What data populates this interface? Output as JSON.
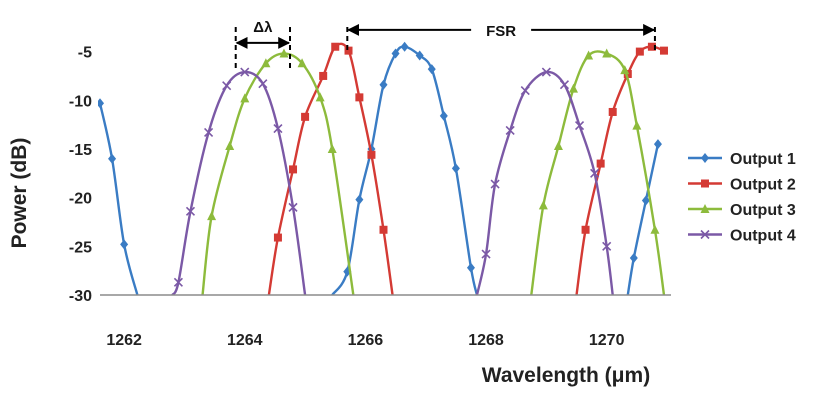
{
  "chart_data": {
    "type": "line",
    "title": "",
    "xlabel": "Wavelength (μm)",
    "ylabel": "Power (dB)",
    "xlim": [
      1261.6,
      1271.0
    ],
    "ylim": [
      -30,
      -3.5
    ],
    "xticks": [
      1262,
      1264,
      1266,
      1268,
      1270
    ],
    "yticks": [
      -5,
      -10,
      -15,
      -20,
      -25,
      -30
    ],
    "grid": false,
    "legend_position": "right",
    "series": [
      {
        "name": "Output 1",
        "color": "#3a7cc4",
        "marker": "diamond",
        "points": [
          [
            1261.6,
            -10.3
          ],
          [
            1261.8,
            -16.0
          ],
          [
            1262.0,
            -24.8
          ],
          [
            1262.22,
            -30.0
          ],
          [
            1265.45,
            -30.0
          ],
          [
            1265.7,
            -27.6
          ],
          [
            1265.9,
            -20.2
          ],
          [
            1266.1,
            -15.0
          ],
          [
            1266.3,
            -8.4
          ],
          [
            1266.5,
            -5.2
          ],
          [
            1266.65,
            -4.5
          ],
          [
            1266.9,
            -5.4
          ],
          [
            1267.1,
            -6.8
          ],
          [
            1267.3,
            -11.6
          ],
          [
            1267.5,
            -17.0
          ],
          [
            1267.75,
            -27.2
          ],
          [
            1267.85,
            -30.0
          ],
          [
            1270.35,
            -30.0
          ],
          [
            1270.45,
            -26.2
          ],
          [
            1270.65,
            -20.3
          ],
          [
            1270.85,
            -14.5
          ]
        ],
        "markers": [
          [
            1261.6,
            -10.3
          ],
          [
            1261.8,
            -16.0
          ],
          [
            1262.0,
            -24.8
          ],
          [
            1265.7,
            -27.6
          ],
          [
            1265.9,
            -20.2
          ],
          [
            1266.1,
            -15.0
          ],
          [
            1266.3,
            -8.4
          ],
          [
            1266.5,
            -5.2
          ],
          [
            1266.65,
            -4.5
          ],
          [
            1266.9,
            -5.4
          ],
          [
            1267.1,
            -6.8
          ],
          [
            1267.3,
            -11.6
          ],
          [
            1267.5,
            -17.0
          ],
          [
            1267.75,
            -27.2
          ],
          [
            1270.45,
            -26.2
          ],
          [
            1270.65,
            -20.3
          ],
          [
            1270.85,
            -14.5
          ]
        ]
      },
      {
        "name": "Output 2",
        "color": "#d43a34",
        "marker": "square",
        "points": [
          [
            1264.4,
            -30.0
          ],
          [
            1264.55,
            -24.1
          ],
          [
            1264.8,
            -17.1
          ],
          [
            1265.0,
            -11.7
          ],
          [
            1265.3,
            -7.5
          ],
          [
            1265.5,
            -4.5
          ],
          [
            1265.72,
            -4.9
          ],
          [
            1265.9,
            -9.7
          ],
          [
            1266.1,
            -15.6
          ],
          [
            1266.3,
            -23.3
          ],
          [
            1266.45,
            -30.0
          ],
          [
            1269.5,
            -30.0
          ],
          [
            1269.65,
            -23.3
          ],
          [
            1269.9,
            -16.5
          ],
          [
            1270.1,
            -11.2
          ],
          [
            1270.35,
            -7.3
          ],
          [
            1270.55,
            -5.0
          ],
          [
            1270.75,
            -4.5
          ],
          [
            1270.95,
            -4.9
          ]
        ],
        "markers": [
          [
            1264.55,
            -24.1
          ],
          [
            1264.8,
            -17.1
          ],
          [
            1265.0,
            -11.7
          ],
          [
            1265.3,
            -7.5
          ],
          [
            1265.5,
            -4.5
          ],
          [
            1265.72,
            -4.9
          ],
          [
            1265.9,
            -9.7
          ],
          [
            1266.1,
            -15.6
          ],
          [
            1266.3,
            -23.3
          ],
          [
            1269.65,
            -23.3
          ],
          [
            1269.9,
            -16.5
          ],
          [
            1270.1,
            -11.2
          ],
          [
            1270.35,
            -7.3
          ],
          [
            1270.55,
            -5.0
          ],
          [
            1270.75,
            -4.5
          ],
          [
            1270.95,
            -4.9
          ]
        ]
      },
      {
        "name": "Output 3",
        "color": "#8dbb3c",
        "marker": "triangle",
        "points": [
          [
            1263.3,
            -30.0
          ],
          [
            1263.45,
            -21.9
          ],
          [
            1263.75,
            -14.7
          ],
          [
            1264.0,
            -9.8
          ],
          [
            1264.35,
            -6.2
          ],
          [
            1264.65,
            -5.2
          ],
          [
            1264.95,
            -6.2
          ],
          [
            1265.25,
            -9.7
          ],
          [
            1265.45,
            -15.0
          ],
          [
            1265.8,
            -30.0
          ],
          [
            1268.75,
            -30.0
          ],
          [
            1268.95,
            -20.8
          ],
          [
            1269.2,
            -14.7
          ],
          [
            1269.45,
            -8.8
          ],
          [
            1269.7,
            -5.4
          ],
          [
            1270.0,
            -5.2
          ],
          [
            1270.3,
            -6.9
          ],
          [
            1270.5,
            -12.6
          ],
          [
            1270.8,
            -23.3
          ],
          [
            1270.95,
            -30.0
          ]
        ],
        "markers": [
          [
            1263.45,
            -21.9
          ],
          [
            1263.75,
            -14.7
          ],
          [
            1264.0,
            -9.8
          ],
          [
            1264.35,
            -6.2
          ],
          [
            1264.65,
            -5.2
          ],
          [
            1264.95,
            -6.2
          ],
          [
            1265.25,
            -9.7
          ],
          [
            1265.45,
            -15.0
          ],
          [
            1268.95,
            -20.8
          ],
          [
            1269.2,
            -14.7
          ],
          [
            1269.45,
            -8.8
          ],
          [
            1269.7,
            -5.4
          ],
          [
            1270.0,
            -5.2
          ],
          [
            1270.3,
            -6.9
          ],
          [
            1270.5,
            -12.6
          ],
          [
            1270.8,
            -23.3
          ]
        ]
      },
      {
        "name": "Output 4",
        "color": "#7b59a6",
        "marker": "x",
        "points": [
          [
            1262.8,
            -30.0
          ],
          [
            1262.9,
            -28.7
          ],
          [
            1263.1,
            -21.4
          ],
          [
            1263.4,
            -13.3
          ],
          [
            1263.7,
            -8.5
          ],
          [
            1264.0,
            -7.1
          ],
          [
            1264.3,
            -8.3
          ],
          [
            1264.55,
            -12.9
          ],
          [
            1264.8,
            -21.0
          ],
          [
            1265.0,
            -30.0
          ],
          [
            1267.85,
            -30.0
          ],
          [
            1268.0,
            -25.8
          ],
          [
            1268.15,
            -18.6
          ],
          [
            1268.4,
            -13.1
          ],
          [
            1268.65,
            -9.0
          ],
          [
            1269.0,
            -7.1
          ],
          [
            1269.3,
            -8.4
          ],
          [
            1269.55,
            -12.6
          ],
          [
            1269.8,
            -17.5
          ],
          [
            1270.0,
            -25.0
          ],
          [
            1270.1,
            -30.0
          ]
        ],
        "markers": [
          [
            1262.9,
            -28.7
          ],
          [
            1263.1,
            -21.4
          ],
          [
            1263.4,
            -13.3
          ],
          [
            1263.7,
            -8.5
          ],
          [
            1264.0,
            -7.1
          ],
          [
            1264.3,
            -8.3
          ],
          [
            1264.55,
            -12.9
          ],
          [
            1264.8,
            -21.0
          ],
          [
            1268.0,
            -25.8
          ],
          [
            1268.15,
            -18.6
          ],
          [
            1268.4,
            -13.1
          ],
          [
            1268.65,
            -9.0
          ],
          [
            1269.0,
            -7.1
          ],
          [
            1269.3,
            -8.4
          ],
          [
            1269.55,
            -12.6
          ],
          [
            1269.8,
            -17.5
          ],
          [
            1270.0,
            -25.0
          ]
        ]
      }
    ],
    "annotations": [
      {
        "label": "Δλ",
        "x1": 1263.85,
        "x2": 1264.75,
        "y": -3.8,
        "line_y_top": -3.5,
        "line_y_bottom": -7.1
      },
      {
        "label": "FSR",
        "x1": 1265.7,
        "x2": 1270.8,
        "y": -3.8,
        "line_y_top": -3.5,
        "line_y_bottom": -5.0
      }
    ]
  }
}
